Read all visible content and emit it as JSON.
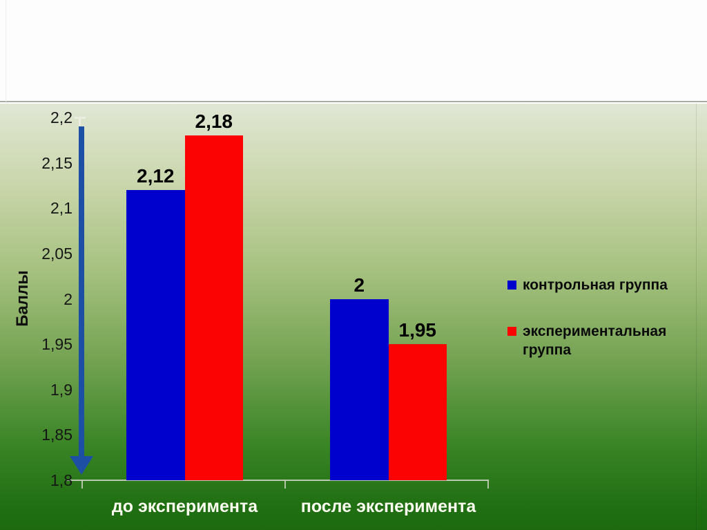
{
  "chart_data": {
    "type": "bar",
    "title": "",
    "ylabel": "Баллы",
    "xlabel": "",
    "categories": [
      "до эксперимента",
      "после эксперимента"
    ],
    "series": [
      {
        "name": "контрольная группа",
        "color": "#0101cd",
        "values": [
          2.12,
          2.0
        ],
        "value_labels": [
          "2,12",
          "2"
        ]
      },
      {
        "name": "экспериментальная группа",
        "color": "#fb0303",
        "values": [
          2.18,
          1.95
        ],
        "value_labels": [
          "2,18",
          "1,95"
        ]
      }
    ],
    "ylim": [
      1.8,
      2.2
    ],
    "y_tick_step": 0.05,
    "y_ticks": [
      "1,8",
      "1,85",
      "1,9",
      "1,95",
      "2",
      "2,05",
      "2,1",
      "2,15",
      "2,2"
    ],
    "grid": false,
    "legend_position": "right",
    "axis_arrow_color": "#1d50a5",
    "axis_line_color": "#ccd2c2",
    "value_label_color": "#000000",
    "category_label_color": "#fdfdf2",
    "tick_label_color": "#161616"
  }
}
